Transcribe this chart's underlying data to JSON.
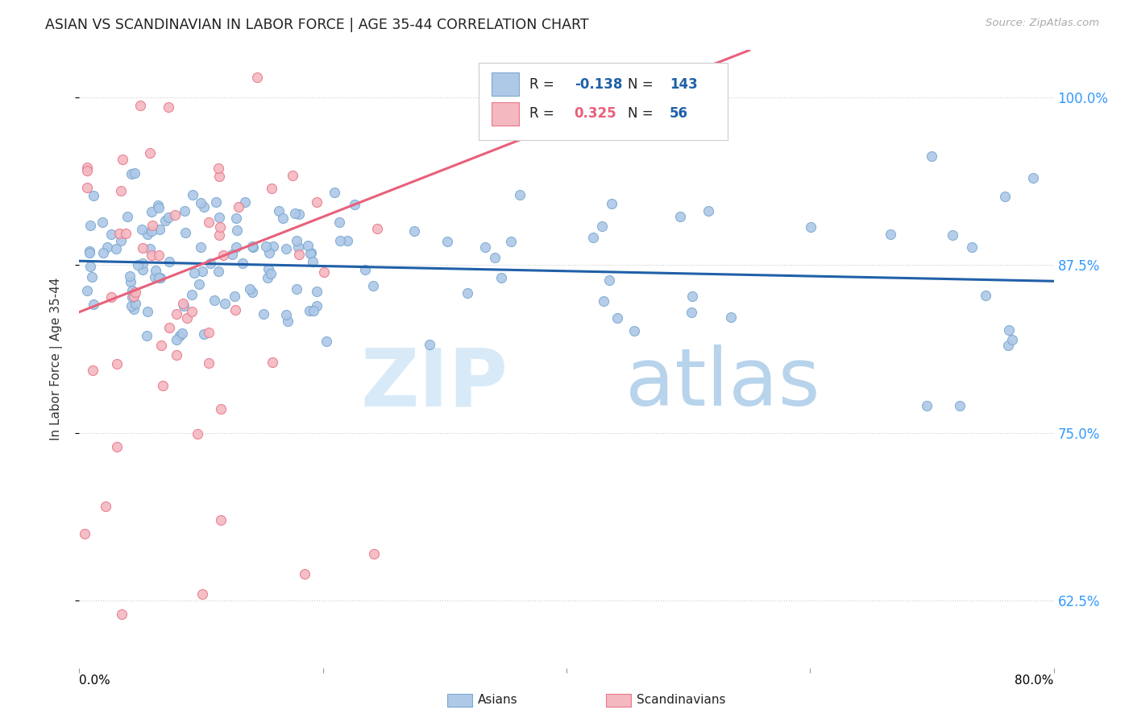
{
  "title": "ASIAN VS SCANDINAVIAN IN LABOR FORCE | AGE 35-44 CORRELATION CHART",
  "source": "Source: ZipAtlas.com",
  "ylabel": "In Labor Force | Age 35-44",
  "legend_asian": "Asians",
  "legend_scand": "Scandinavians",
  "r_asian": "-0.138",
  "n_asian": "143",
  "r_scand": "0.325",
  "n_scand": "56",
  "color_asian": "#aec8e8",
  "color_asian_edge": "#7ba9d0",
  "color_scand": "#f4b8c1",
  "color_scand_edge": "#e8788a",
  "color_asian_line": "#2060a8",
  "color_scand_line": "#e8607a",
  "color_r_asian": "#2060a8",
  "color_r_scand": "#e8607a",
  "color_n": "#2060a8",
  "xlim": [
    0.0,
    0.8
  ],
  "ylim": [
    0.575,
    1.035
  ],
  "yticks": [
    0.625,
    0.75,
    0.875,
    1.0
  ],
  "ytick_labels": [
    "62.5%",
    "75.0%",
    "87.5%",
    "100.0%"
  ],
  "asian_line_x": [
    0.0,
    0.8
  ],
  "asian_line_y": [
    0.878,
    0.863
  ],
  "scand_line_x": [
    0.0,
    0.55
  ],
  "scand_line_y": [
    0.84,
    1.035
  ]
}
